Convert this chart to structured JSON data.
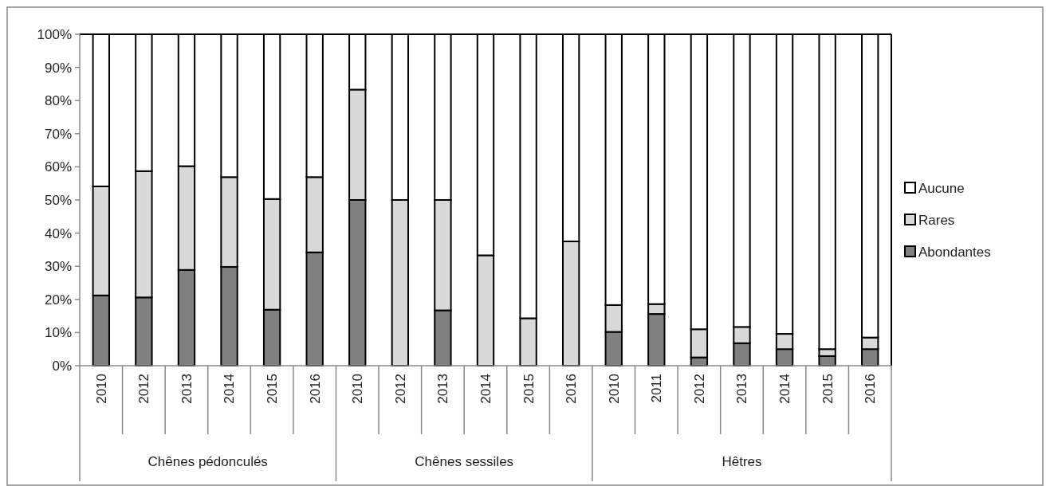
{
  "chart_data": {
    "type": "bar",
    "stacked": true,
    "categories": [
      "2010",
      "2012",
      "2013",
      "2014",
      "2015",
      "2016",
      "2010",
      "2012",
      "2013",
      "2014",
      "2015",
      "2016",
      "2010",
      "2011",
      "2012",
      "2013",
      "2014",
      "2015",
      "2016"
    ],
    "series": [
      {
        "name": "Abondantes",
        "color": "#808080",
        "values": [
          21.2,
          20.6,
          28.9,
          29.8,
          16.9,
          34.2,
          50,
          0,
          16.7,
          0,
          0,
          0,
          10.2,
          15.6,
          2.5,
          6.8,
          5,
          2.9,
          5
        ]
      },
      {
        "name": "Rares",
        "color": "#d9d9d9",
        "values": [
          32.9,
          38.1,
          31.3,
          27.1,
          33.4,
          22.7,
          33.3,
          50,
          33.3,
          33.3,
          14.3,
          37.5,
          8.1,
          3,
          8.5,
          4.9,
          4.6,
          2.1,
          3.5
        ]
      },
      {
        "name": "Aucune",
        "color": "#ffffff",
        "values": [
          45.9,
          41.3,
          39.8,
          43.1,
          49.7,
          43.1,
          16.7,
          50,
          50,
          66.7,
          85.7,
          62.5,
          81.7,
          81.4,
          89,
          88.3,
          90.4,
          95,
          91.5
        ]
      }
    ],
    "ylim": [
      0,
      100
    ],
    "yticks": [
      {
        "value": 0,
        "label": "0%"
      },
      {
        "value": 10,
        "label": "10%"
      },
      {
        "value": 20,
        "label": "20%"
      },
      {
        "value": 30,
        "label": "30%"
      },
      {
        "value": 40,
        "label": "40%"
      },
      {
        "value": 50,
        "label": "50%"
      },
      {
        "value": 60,
        "label": "60%"
      },
      {
        "value": 70,
        "label": "70%"
      },
      {
        "value": 80,
        "label": "80%"
      },
      {
        "value": 90,
        "label": "90%"
      },
      {
        "value": 100,
        "label": "100%"
      }
    ],
    "annotations": [
      "Chênes pédonculés",
      "Chênes sessiles",
      "Hêtres"
    ],
    "legend": "right",
    "grid": false
  }
}
